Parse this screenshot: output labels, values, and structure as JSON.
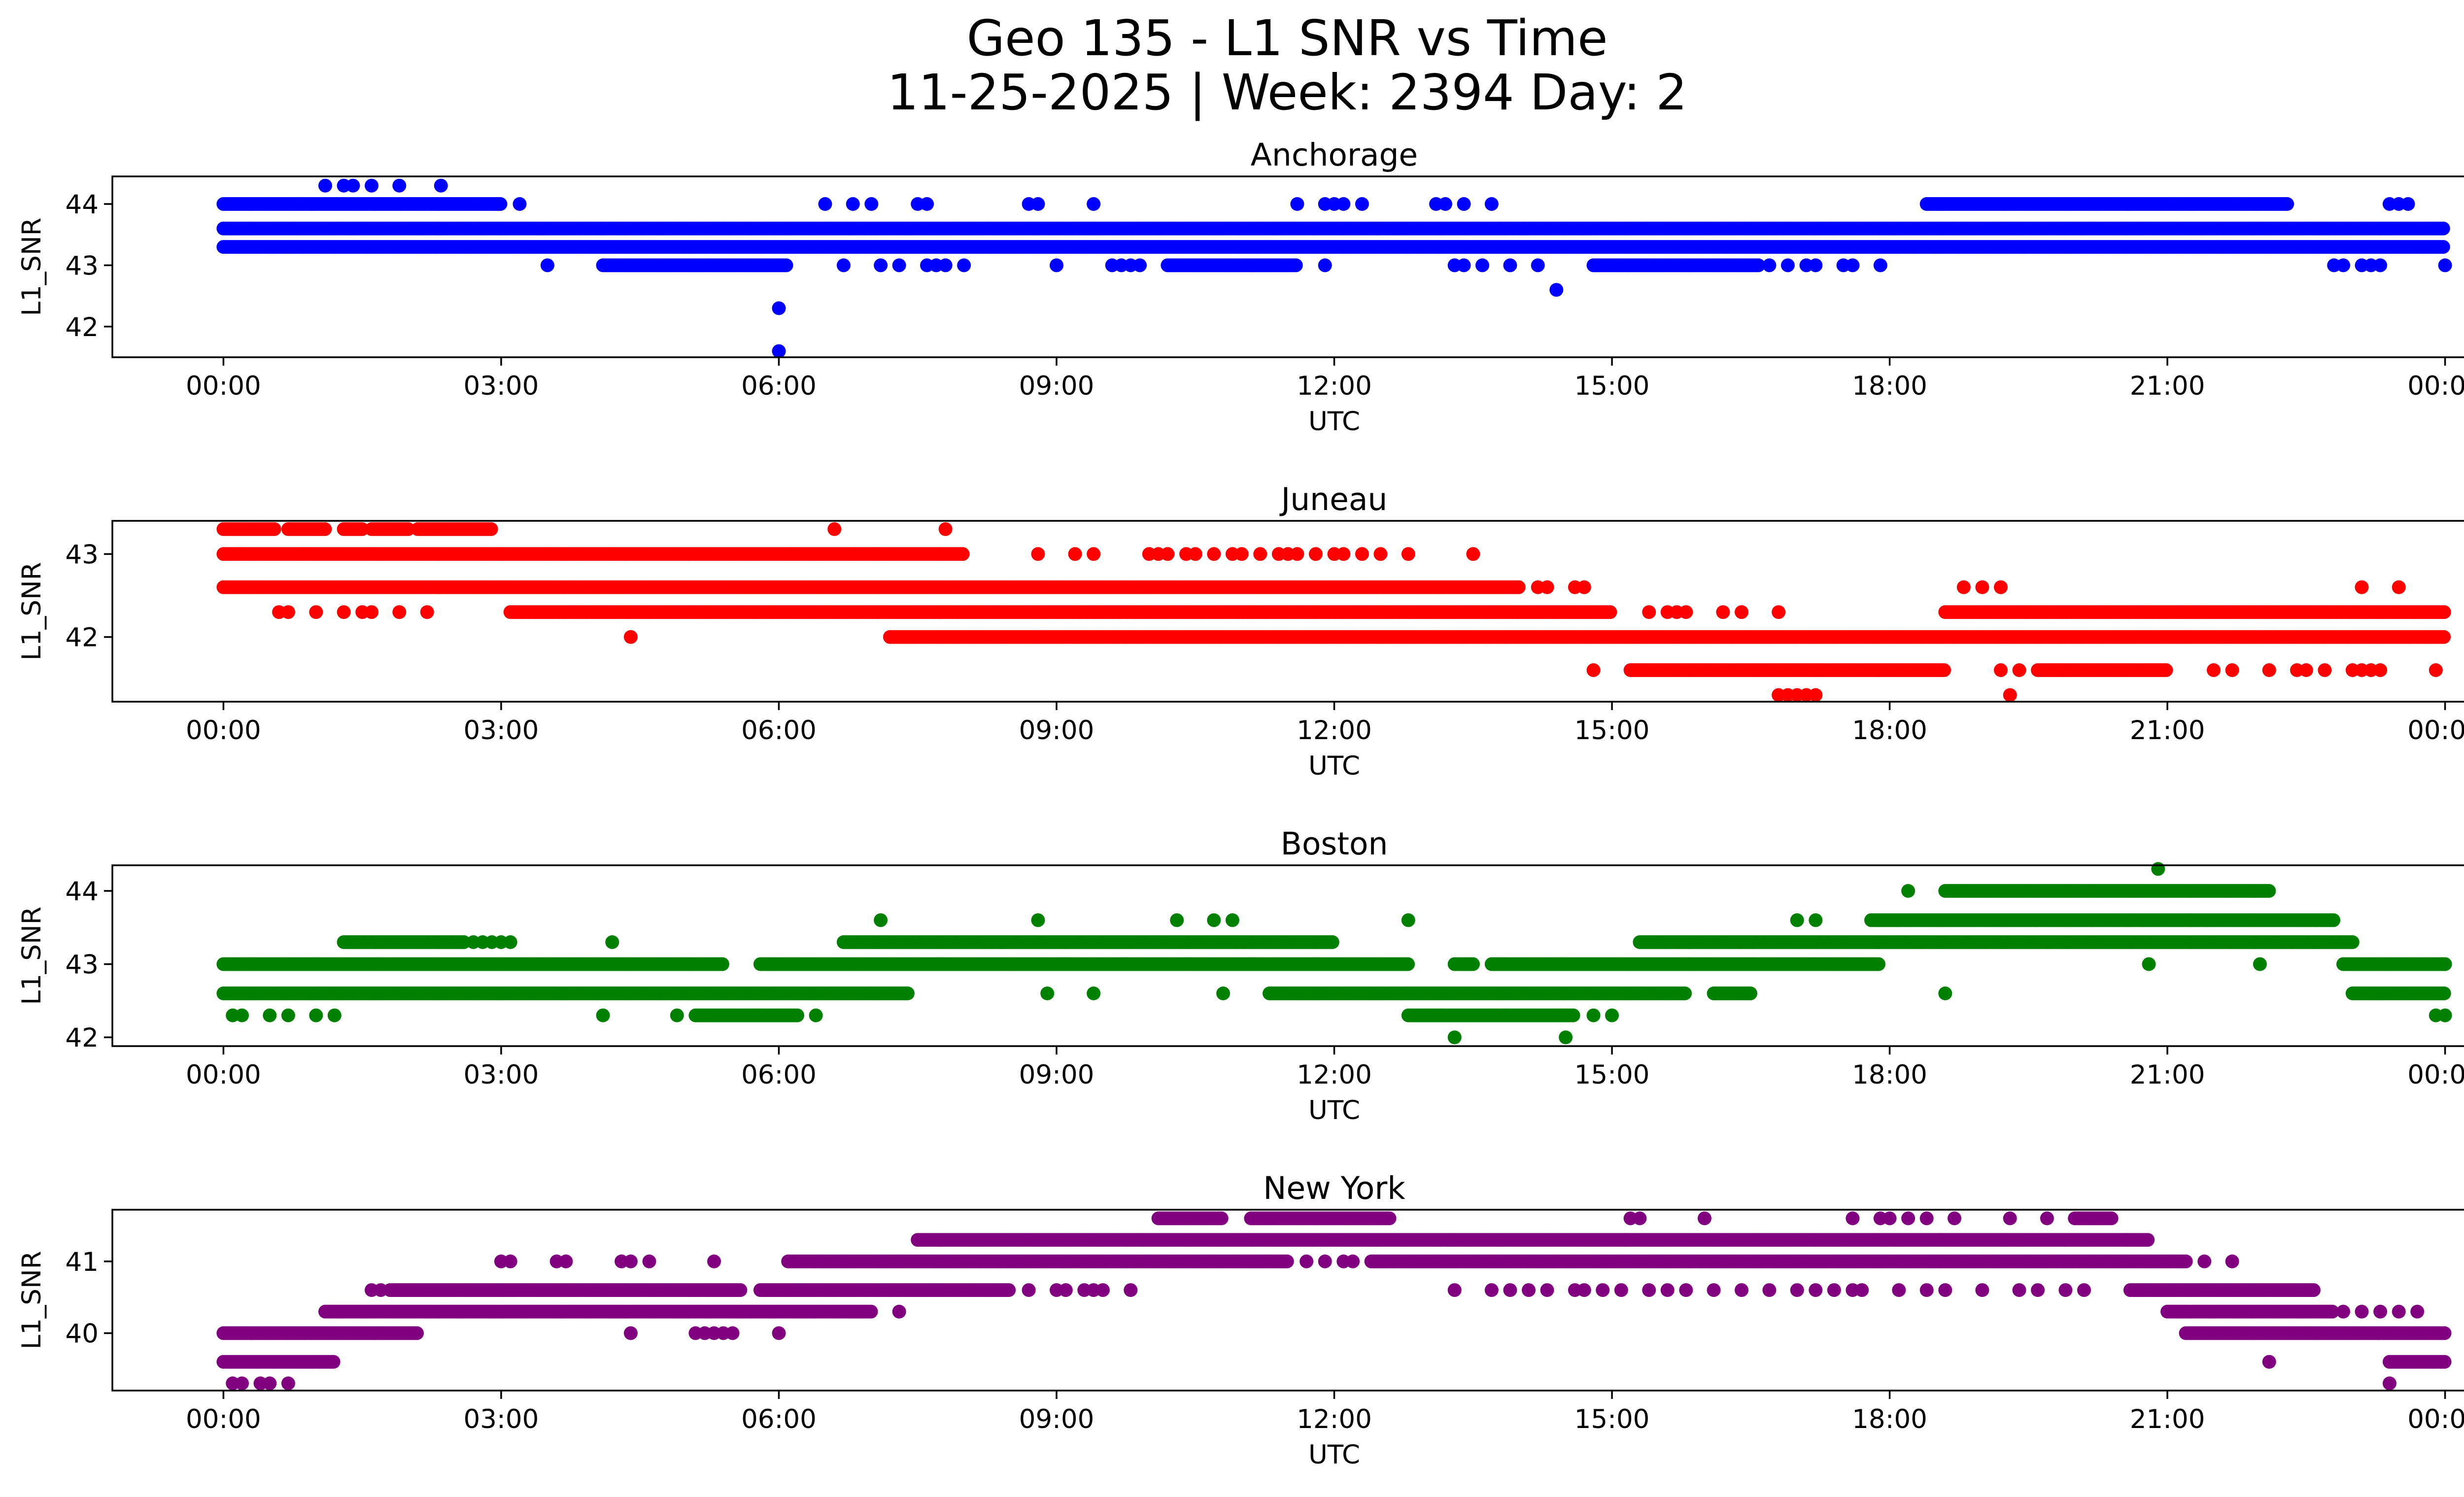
{
  "suptitle_line1": "Geo 135 - L1 SNR vs Time",
  "suptitle_line2": "11-25-2025 | Week: 2394 Day: 2",
  "chart_data": [
    {
      "type": "scatter",
      "title": "Anchorage",
      "xlabel": "UTC",
      "ylabel": "L1_SNR",
      "color": "#0000ff",
      "xlim_hours": [
        -1.2,
        25.2
      ],
      "ylim": [
        41.5,
        44.45
      ],
      "x_ticks": [
        "00:00",
        "03:00",
        "06:00",
        "09:00",
        "12:00",
        "15:00",
        "18:00",
        "21:00",
        "00:00"
      ],
      "y_ticks": [
        42,
        43,
        44
      ],
      "level_runs": [
        {
          "y": 43.6,
          "runs": [
            [
              0.0,
              24.0
            ]
          ]
        },
        {
          "y": 43.3,
          "runs": [
            [
              0.0,
              24.0
            ]
          ]
        },
        {
          "y": 44.0,
          "runs": [
            [
              0.0,
              3.0
            ],
            [
              18.4,
              22.3
            ]
          ]
        },
        {
          "y": 43.0,
          "runs": [
            [
              4.1,
              6.1
            ],
            [
              10.2,
              11.6
            ],
            [
              14.8,
              16.6
            ]
          ]
        }
      ],
      "level_dots": [
        {
          "y": 44.3,
          "x": [
            1.1,
            1.3,
            1.4,
            1.6,
            1.9,
            2.35
          ]
        },
        {
          "y": 44.0,
          "x": [
            3.2,
            6.5,
            6.8,
            7.0,
            7.5,
            7.6,
            8.7,
            8.8,
            9.4,
            11.6,
            11.9,
            12.0,
            12.1,
            12.3,
            13.1,
            13.2,
            13.4,
            13.7,
            23.4,
            23.5,
            23.6
          ]
        },
        {
          "y": 43.0,
          "x": [
            3.5,
            6.7,
            7.1,
            7.3,
            7.6,
            7.7,
            7.8,
            8.0,
            9.0,
            9.6,
            9.7,
            9.8,
            9.9,
            11.9,
            13.3,
            13.4,
            13.6,
            13.9,
            14.2,
            16.7,
            16.9,
            17.1,
            17.2,
            17.5,
            17.6,
            17.9,
            22.8,
            22.9,
            23.1,
            23.2,
            23.3,
            24.0
          ]
        }
      ],
      "outliers": [
        [
          6.0,
          42.3
        ],
        [
          6.0,
          41.6
        ],
        [
          14.4,
          42.6
        ]
      ]
    },
    {
      "type": "scatter",
      "title": "Juneau",
      "xlabel": "UTC",
      "ylabel": "L1_SNR",
      "color": "#ff0000",
      "xlim_hours": [
        -1.2,
        25.2
      ],
      "ylim": [
        41.22,
        43.4
      ],
      "x_ticks": [
        "00:00",
        "03:00",
        "06:00",
        "09:00",
        "12:00",
        "15:00",
        "18:00",
        "21:00",
        "00:00"
      ],
      "y_ticks": [
        42,
        43
      ],
      "level_runs": [
        {
          "y": 43.3,
          "runs": [
            [
              0.0,
              0.55
            ],
            [
              0.7,
              1.1
            ],
            [
              1.3,
              1.5
            ],
            [
              1.6,
              2.0
            ],
            [
              2.1,
              2.9
            ]
          ]
        },
        {
          "y": 43.0,
          "runs": [
            [
              0.0,
              8.0
            ]
          ]
        },
        {
          "y": 42.6,
          "runs": [
            [
              0.0,
              14.0
            ]
          ]
        },
        {
          "y": 42.3,
          "runs": [
            [
              3.1,
              15.0
            ],
            [
              18.6,
              24.0
            ]
          ]
        },
        {
          "y": 42.0,
          "runs": [
            [
              7.2,
              24.0
            ]
          ]
        },
        {
          "y": 41.6,
          "runs": [
            [
              15.2,
              18.6
            ],
            [
              19.6,
              21.0
            ]
          ]
        }
      ],
      "level_dots": [
        {
          "y": 43.3,
          "x": [
            6.6,
            7.8
          ]
        },
        {
          "y": 43.0,
          "x": [
            8.8,
            9.2,
            9.4,
            10.0,
            10.1,
            10.2,
            10.4,
            10.5,
            10.7,
            10.9,
            11.0,
            11.2,
            11.4,
            11.5,
            11.6,
            11.8,
            12.0,
            12.1,
            12.3,
            12.5,
            12.8,
            13.5
          ]
        },
        {
          "y": 42.6,
          "x": [
            14.2,
            14.3,
            14.6,
            14.7
          ]
        },
        {
          "y": 42.3,
          "x": [
            0.6,
            0.7,
            1.0,
            1.3,
            1.5,
            1.6,
            1.9,
            2.2,
            15.4,
            15.6,
            15.7,
            15.8,
            16.2,
            16.4,
            16.8
          ]
        },
        {
          "y": 42.6,
          "x": [
            18.8,
            19.0,
            19.2,
            23.1,
            23.5
          ]
        },
        {
          "y": 42.0,
          "x": [
            4.4
          ]
        },
        {
          "y": 41.6,
          "x": [
            14.8,
            19.2,
            19.4,
            21.5,
            21.7,
            22.1,
            22.4,
            22.5,
            22.7,
            23.0,
            23.1,
            23.2,
            23.3,
            23.9
          ]
        },
        {
          "y": 41.3,
          "x": [
            16.8,
            16.9,
            17.0,
            17.1,
            17.2,
            19.3
          ]
        }
      ],
      "outliers": []
    },
    {
      "type": "scatter",
      "title": "Boston",
      "xlabel": "UTC",
      "ylabel": "L1_SNR",
      "color": "#008000",
      "xlim_hours": [
        -1.2,
        25.2
      ],
      "ylim": [
        41.88,
        44.35
      ],
      "x_ticks": [
        "00:00",
        "03:00",
        "06:00",
        "09:00",
        "12:00",
        "15:00",
        "18:00",
        "21:00",
        "00:00"
      ],
      "y_ticks": [
        42,
        43,
        44
      ],
      "level_runs": [
        {
          "y": 43.0,
          "runs": [
            [
              0.0,
              5.4
            ],
            [
              5.8,
              12.8
            ],
            [
              13.3,
              13.5
            ],
            [
              13.7,
              17.9
            ],
            [
              22.9,
              24.0
            ]
          ]
        },
        {
          "y": 42.6,
          "runs": [
            [
              0.0,
              7.4
            ],
            [
              11.3,
              15.8
            ],
            [
              16.1,
              16.5
            ],
            [
              23.0,
              24.0
            ]
          ]
        },
        {
          "y": 43.3,
          "runs": [
            [
              1.3,
              2.6
            ],
            [
              6.7,
              12.0
            ],
            [
              15.3,
              23.0
            ]
          ]
        },
        {
          "y": 43.6,
          "runs": [
            [
              17.8,
              22.8
            ]
          ]
        },
        {
          "y": 44.0,
          "runs": [
            [
              18.6,
              22.1
            ]
          ]
        },
        {
          "y": 42.3,
          "runs": [
            [
              5.1,
              6.2
            ],
            [
              12.8,
              14.6
            ]
          ]
        }
      ],
      "level_dots": [
        {
          "y": 43.3,
          "x": [
            2.7,
            2.8,
            2.9,
            3.0,
            3.1,
            4.2
          ]
        },
        {
          "y": 43.6,
          "x": [
            7.1,
            8.8,
            10.3,
            10.7,
            10.9,
            12.8,
            17.0,
            17.2
          ]
        },
        {
          "y": 42.3,
          "x": [
            0.1,
            0.2,
            0.5,
            0.7,
            1.0,
            1.2,
            4.1,
            4.9,
            6.4,
            14.8,
            15.0,
            23.9,
            24.0
          ]
        },
        {
          "y": 42.6,
          "x": [
            8.9,
            9.4,
            10.8,
            18.6
          ]
        },
        {
          "y": 44.0,
          "x": [
            18.2
          ]
        },
        {
          "y": 44.3,
          "x": [
            20.9
          ]
        },
        {
          "y": 43.0,
          "x": [
            20.8,
            22.0
          ]
        },
        {
          "y": 42.0,
          "x": [
            13.3,
            14.5
          ]
        }
      ],
      "outliers": []
    },
    {
      "type": "scatter",
      "title": "New York",
      "xlabel": "UTC",
      "ylabel": "L1_SNR",
      "color": "#800080",
      "xlim_hours": [
        -1.2,
        25.2
      ],
      "ylim": [
        39.2,
        41.72
      ],
      "x_ticks": [
        "00:00",
        "03:00",
        "06:00",
        "09:00",
        "12:00",
        "15:00",
        "18:00",
        "21:00",
        "00:00"
      ],
      "y_ticks": [
        40,
        41
      ],
      "level_runs": [
        {
          "y": 39.6,
          "runs": [
            [
              0.0,
              1.2
            ],
            [
              23.4,
              24.0
            ]
          ]
        },
        {
          "y": 40.0,
          "runs": [
            [
              0.0,
              2.1
            ],
            [
              21.2,
              24.0
            ]
          ]
        },
        {
          "y": 40.3,
          "runs": [
            [
              1.1,
              7.0
            ],
            [
              21.0,
              22.8
            ]
          ]
        },
        {
          "y": 40.6,
          "runs": [
            [
              1.8,
              5.6
            ],
            [
              5.8,
              8.5
            ],
            [
              20.6,
              22.6
            ]
          ]
        },
        {
          "y": 41.0,
          "runs": [
            [
              6.1,
              11.5
            ],
            [
              12.4,
              21.2
            ]
          ]
        },
        {
          "y": 41.3,
          "runs": [
            [
              7.5,
              20.8
            ]
          ]
        },
        {
          "y": 41.6,
          "runs": [
            [
              10.1,
              10.8
            ],
            [
              11.1,
              12.6
            ],
            [
              20.0,
              20.4
            ]
          ]
        }
      ],
      "level_dots": [
        {
          "y": 41.0,
          "x": [
            3.0,
            3.1,
            3.6,
            3.7,
            4.3,
            4.4,
            4.6,
            5.3,
            11.7,
            11.9,
            12.1,
            12.2,
            21.4,
            21.7
          ]
        },
        {
          "y": 40.6,
          "x": [
            1.6,
            1.7,
            8.7,
            9.0,
            9.1,
            9.3,
            9.4,
            9.8,
            13.3,
            13.7,
            13.9,
            14.1,
            14.3,
            14.6,
            14.7,
            14.9,
            15.1,
            15.4,
            15.6,
            15.8,
            16.1,
            16.4,
            16.7,
            17.0,
            17.2,
            17.4,
            17.6,
            17.7,
            18.1,
            18.4,
            18.6,
            19.0,
            19.4,
            19.6,
            19.9,
            20.1
          ]
        },
        {
          "y": 40.3,
          "x": [
            7.3,
            22.9,
            23.1,
            23.3,
            23.5,
            23.7
          ]
        },
        {
          "y": 40.0,
          "x": [
            4.4,
            5.1,
            5.2,
            5.3,
            5.4,
            5.5,
            6.0
          ]
        },
        {
          "y": 41.6,
          "x": [
            15.2,
            15.3,
            16.0,
            17.6,
            17.9,
            18.0,
            18.2,
            18.4,
            18.7,
            19.3,
            19.7
          ]
        },
        {
          "y": 39.3,
          "x": [
            0.1,
            0.2,
            0.4,
            0.5,
            0.7,
            23.4
          ]
        },
        {
          "y": 39.6,
          "x": [
            22.1
          ]
        },
        {
          "y": 40.6,
          "x": [
            9.5
          ]
        }
      ],
      "outliers": []
    }
  ]
}
